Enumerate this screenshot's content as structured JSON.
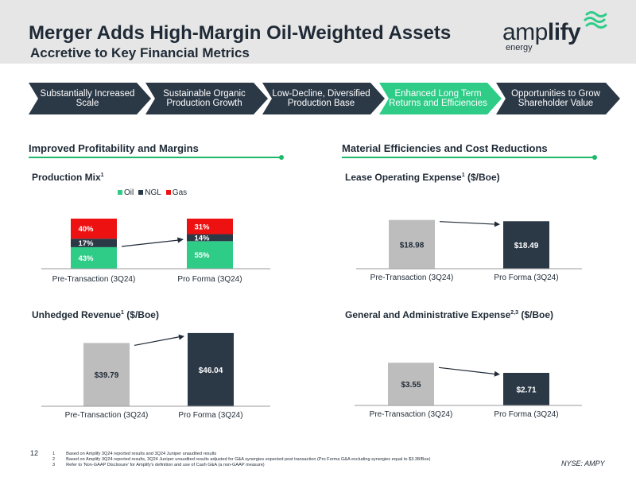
{
  "header": {
    "title": "Merger Adds High-Margin Oil-Weighted Assets",
    "subtitle": "Accretive to Key Financial Metrics"
  },
  "logo": {
    "word_light": "amp",
    "word_bold": "lify",
    "sub": "energy"
  },
  "chevrons": [
    {
      "label": "Substantially Increased Scale",
      "highlighted": false
    },
    {
      "label": "Sustainable Organic Production Growth",
      "highlighted": false
    },
    {
      "label": "Low-Decline, Diversified Production Base",
      "highlighted": false
    },
    {
      "label": "Enhanced Long Term Returns and Efficiencies",
      "highlighted": true
    },
    {
      "label": "Opportunities to Grow Shareholder Value",
      "highlighted": false
    }
  ],
  "colors": {
    "navy": "#1f2a36",
    "green": "#1db96a",
    "oil": "#2ecc87",
    "ngl": "#2b3846",
    "gas": "#ee1111",
    "gray_bar": "#bdbdbd",
    "chev_dark": "#2b3846",
    "chev_green": "#2ecc87",
    "header_bg": "#e6e6e6"
  },
  "sections": {
    "left": "Improved Profitability and Margins",
    "right": "Material Efficiencies and Cost Reductions"
  },
  "chart_titles": {
    "production_mix": {
      "text": "Production Mix",
      "sup": "1"
    },
    "loe": {
      "text": "Lease Operating Expense",
      "sup": "1",
      "after": " ($/Boe)"
    },
    "revenue": {
      "text": "Unhedged Revenue",
      "sup": "1",
      "after": " ($/Boe)"
    },
    "gna": {
      "text": "General and Administrative Expense",
      "sup": "2,3",
      "after": " ($/Boe)"
    }
  },
  "legend": [
    {
      "label": "Oil",
      "color": "#2ecc87"
    },
    {
      "label": "NGL",
      "color": "#2b3846"
    },
    {
      "label": "Gas",
      "color": "#ee1111"
    }
  ],
  "chart_data": [
    {
      "type": "bar",
      "stacked": true,
      "title": "Production Mix",
      "categories": [
        "Pre-Transaction (3Q24)",
        "Pro Forma (3Q24)"
      ],
      "series": [
        {
          "name": "Oil",
          "values": [
            43,
            55
          ],
          "labels": [
            "43%",
            "55%"
          ],
          "color": "#2ecc87"
        },
        {
          "name": "NGL",
          "values": [
            17,
            14
          ],
          "labels": [
            "17%",
            "14%"
          ],
          "color": "#2b3846"
        },
        {
          "name": "Gas",
          "values": [
            40,
            31
          ],
          "labels": [
            "40%",
            "31%"
          ],
          "color": "#ee1111"
        }
      ],
      "ylim": [
        0,
        100
      ],
      "legend_position": "top",
      "grid": false
    },
    {
      "type": "bar",
      "title": "Lease Operating Expense ($/Boe)",
      "categories": [
        "Pre-Transaction (3Q24)",
        "Pro Forma (3Q24)"
      ],
      "values": [
        18.98,
        18.49
      ],
      "labels": [
        "$18.98",
        "$18.49"
      ],
      "colors": [
        "#bdbdbd",
        "#2b3846"
      ],
      "ylim": [
        0,
        19.5
      ],
      "grid": false
    },
    {
      "type": "bar",
      "title": "Unhedged Revenue ($/Boe)",
      "categories": [
        "Pre-Transaction (3Q24)",
        "Pro Forma (3Q24)"
      ],
      "values": [
        39.79,
        46.04
      ],
      "labels": [
        "$39.79",
        "$46.04"
      ],
      "colors": [
        "#bdbdbd",
        "#2b3846"
      ],
      "ylim": [
        0,
        47
      ],
      "grid": false
    },
    {
      "type": "bar",
      "title": "General and Administrative Expense ($/Boe)",
      "categories": [
        "Pre-Transaction (3Q24)",
        "Pro Forma (3Q24)"
      ],
      "values": [
        3.55,
        2.71
      ],
      "labels": [
        "$3.55",
        "$2.71"
      ],
      "colors": [
        "#bdbdbd",
        "#2b3846"
      ],
      "ylim": [
        0,
        3.9
      ],
      "grid": false
    }
  ],
  "footer": {
    "page_number": "12",
    "footnotes": [
      {
        "num": "1",
        "text": "Based on Amplify 3Q24 reported results and 3Q24 Juniper unaudited results"
      },
      {
        "num": "2",
        "text": "Based on Amplify 3Q24 reported results, 3Q24 Juniper unaudited results adjusted for G&A synergies expected post transaction (Pro Forma G&A excluding synergies equal to $3.38/Boe)"
      },
      {
        "num": "3",
        "text": "Refer to 'Non-GAAP Disclosure' for Amplify's definition and use of Cash G&A (a non-GAAP measure)"
      }
    ],
    "ticker": "NYSE: AMPY"
  }
}
